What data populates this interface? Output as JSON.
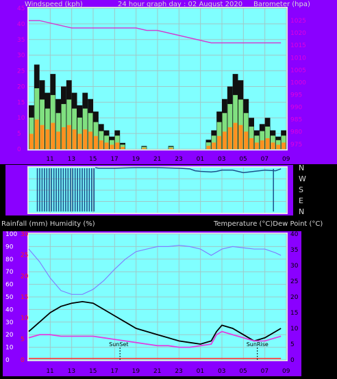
{
  "chart_data": [
    {
      "type": "area",
      "title": "24 hour graph day : 02 August 2020",
      "ylabel_left": "Windspeed (kph)",
      "ylabel_right": "Barometer (hpa)",
      "x_ticks": [
        "11",
        "13",
        "15",
        "17",
        "19",
        "21",
        "23",
        "01",
        "03",
        "05",
        "07",
        "09"
      ],
      "y_left_ticks": [
        "0",
        "5",
        "10",
        "15",
        "20",
        "25",
        "30",
        "35",
        "40",
        "45"
      ],
      "y_left_range": [
        0,
        45
      ],
      "y_right_ticks": [
        "975",
        "980",
        "985",
        "990",
        "995",
        "1000",
        "1005",
        "1010",
        "1015",
        "1020",
        "1025"
      ],
      "y_right_range": [
        973,
        1030
      ],
      "grid": true,
      "series": [
        {
          "name": "Windspeed (kph)",
          "color": "#000000",
          "hours": [
            0,
            0.5,
            1,
            1.5,
            2,
            2.5,
            3,
            3.5,
            4,
            4.5,
            5,
            5.5,
            6,
            6.5,
            7,
            7.5,
            8,
            8.5,
            9,
            9.5,
            10,
            10.5,
            11,
            11.5,
            12,
            12.5,
            13,
            13.5,
            14,
            14.5,
            15,
            15.5,
            16,
            16.5,
            17,
            17.5,
            18,
            18.5,
            19,
            19.5,
            20,
            20.5,
            21,
            21.5,
            22,
            22.5,
            23,
            23.5
          ],
          "values": [
            14,
            27,
            22,
            18,
            24,
            16,
            20,
            22,
            18,
            14,
            18,
            16,
            12,
            8,
            6,
            4,
            6,
            2,
            0,
            0,
            0,
            1,
            0,
            0,
            0,
            0,
            1,
            0,
            0,
            0,
            0,
            0,
            0,
            3,
            6,
            12,
            16,
            20,
            24,
            22,
            16,
            10,
            6,
            8,
            10,
            6,
            4,
            6
          ]
        },
        {
          "name": "Barometer (hpa)",
          "color": "#d040d0",
          "hours": [
            0,
            1,
            2,
            3,
            4,
            5,
            6,
            7,
            8,
            9,
            10,
            11,
            12,
            13,
            14,
            15,
            16,
            17,
            18,
            19,
            20,
            21,
            22,
            23,
            23.5
          ],
          "values": [
            1025,
            1025,
            1024,
            1023,
            1022,
            1022,
            1022,
            1022,
            1022,
            1022,
            1022,
            1021,
            1021,
            1020,
            1019,
            1018,
            1017,
            1016,
            1016,
            1016,
            1016,
            1016,
            1016,
            1016,
            1016
          ]
        }
      ]
    },
    {
      "type": "line",
      "ylabel_right": "N W S E N",
      "direction_labels": [
        "N",
        "W",
        "S",
        "E",
        "N"
      ],
      "series": [
        {
          "name": "Wind direction",
          "color": "#1a4f8a",
          "hours": [
            0,
            2,
            4,
            6.2,
            6.5,
            8,
            10,
            12,
            14,
            15,
            15.5,
            16,
            17,
            17.5,
            18,
            19,
            20,
            21,
            22,
            23,
            23.5
          ],
          "values": [
            0,
            200,
            0,
            360,
            355,
            355,
            360,
            360,
            355,
            350,
            335,
            330,
            325,
            330,
            340,
            340,
            320,
            330,
            340,
            335,
            350
          ]
        }
      ]
    },
    {
      "type": "line",
      "ylabel_left": "Rainfall (mm)  Humidity (%)",
      "ylabel_right": "Temperature (°C)Dew Point (°C)",
      "x_ticks": [
        "11",
        "13",
        "15",
        "17",
        "19",
        "21",
        "23",
        "01",
        "03",
        "05",
        "07",
        "09"
      ],
      "y_left_ticks": [
        "0",
        "10",
        "20",
        "30",
        "40",
        "50",
        "60",
        "70",
        "80",
        "90",
        "100"
      ],
      "y_left_range": [
        0,
        100
      ],
      "y_rain_ticks": [
        "0",
        "5",
        "10",
        "15",
        "20",
        "25",
        "30"
      ],
      "y_right_ticks": [
        "0",
        "5",
        "10",
        "15",
        "20",
        "25",
        "30",
        "35",
        "40"
      ],
      "y_right_range": [
        0,
        40
      ],
      "annotations": [
        {
          "label": "SunSet",
          "hour": 8.5
        },
        {
          "label": "SunRise",
          "hour": 21.3
        }
      ],
      "grid": true,
      "series": [
        {
          "name": "Humidity (%)",
          "color": "#8080ff",
          "hours": [
            0,
            1,
            2,
            3,
            4,
            5,
            6,
            7,
            8,
            9,
            10,
            11,
            12,
            13,
            14,
            15,
            16,
            17,
            18,
            19,
            20,
            21,
            22,
            23,
            23.5
          ],
          "values": [
            88,
            78,
            65,
            55,
            52,
            52,
            56,
            63,
            72,
            80,
            86,
            88,
            90,
            90,
            91,
            90,
            88,
            83,
            88,
            90,
            89,
            88,
            88,
            85,
            83
          ]
        },
        {
          "name": "Temperature (°C)",
          "color": "#000000",
          "hours": [
            0,
            1,
            2,
            3,
            4,
            5,
            6,
            7,
            8,
            9,
            10,
            11,
            12,
            13,
            14,
            15,
            16,
            17,
            17.5,
            18,
            19,
            20,
            21,
            22,
            23,
            23.5
          ],
          "values": [
            9,
            12,
            15,
            17,
            18,
            18.5,
            18,
            16,
            14,
            12,
            10,
            9,
            8,
            7,
            6,
            5.5,
            5,
            6,
            9,
            11,
            10,
            8,
            6,
            7,
            9,
            10
          ]
        },
        {
          "name": "Dew Point (°C)",
          "color": "#e040e0",
          "hours": [
            0,
            1,
            2,
            3,
            4,
            5,
            6,
            7,
            8,
            9,
            10,
            11,
            12,
            13,
            14,
            15,
            16,
            17,
            17.5,
            18,
            19,
            20,
            21,
            22,
            23,
            23.5
          ],
          "values": [
            7,
            8,
            8,
            7.5,
            7.5,
            7.5,
            7.5,
            7,
            6.5,
            6,
            5.5,
            5,
            4.5,
            4.5,
            4,
            4,
            4.5,
            5,
            8,
            9,
            8,
            7,
            6,
            6,
            7,
            7.5
          ]
        },
        {
          "name": "Rainfall (mm)",
          "color": "#ff4040",
          "hours": [
            0,
            23.5
          ],
          "values": [
            0,
            0
          ]
        }
      ]
    }
  ]
}
